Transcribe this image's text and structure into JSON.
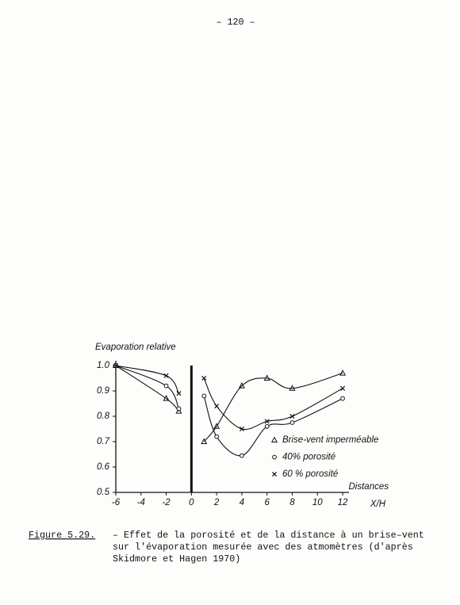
{
  "header": {
    "page_number": "– 120 –"
  },
  "chart_data": {
    "type": "line",
    "y_label": "Evaporation relative",
    "x_label": "X/H",
    "x_title": "Distances",
    "x": [
      -6,
      -2,
      -1,
      0,
      1,
      2,
      4,
      6,
      8,
      12
    ],
    "series": [
      {
        "name": "Brise-vent imperméable",
        "marker": "triangle",
        "color": "#111111",
        "values": [
          1.0,
          0.87,
          0.82,
          null,
          0.7,
          0.76,
          0.92,
          0.95,
          0.91,
          0.97
        ]
      },
      {
        "name": "40% porosité",
        "marker": "circle",
        "color": "#111111",
        "values": [
          1.0,
          0.92,
          0.83,
          null,
          0.88,
          0.72,
          0.645,
          0.76,
          0.775,
          0.87
        ]
      },
      {
        "name": "60 % porosité",
        "marker": "cross",
        "color": "#111111",
        "values": [
          1.0,
          0.96,
          0.89,
          null,
          0.95,
          0.84,
          0.75,
          0.78,
          0.8,
          0.91
        ]
      }
    ],
    "xlim": [
      -6,
      12.5
    ],
    "ylim": [
      0.5,
      1.0
    ],
    "xticks": [
      -6,
      -4,
      -2,
      0,
      2,
      4,
      6,
      8,
      10,
      12
    ],
    "yticks": [
      {
        "value": 1.0,
        "label": "1.0"
      },
      0.9,
      0.8,
      0.7,
      0.6,
      0.5
    ]
  },
  "caption": {
    "label": "Figure 5.29.",
    "lines": [
      "– Effet de la porosité et de la distance à un brise–vent",
      "sur l'évaporation mesurée avec des atmomètres (d'après",
      "Skidmore et Hagen 1970)"
    ]
  }
}
